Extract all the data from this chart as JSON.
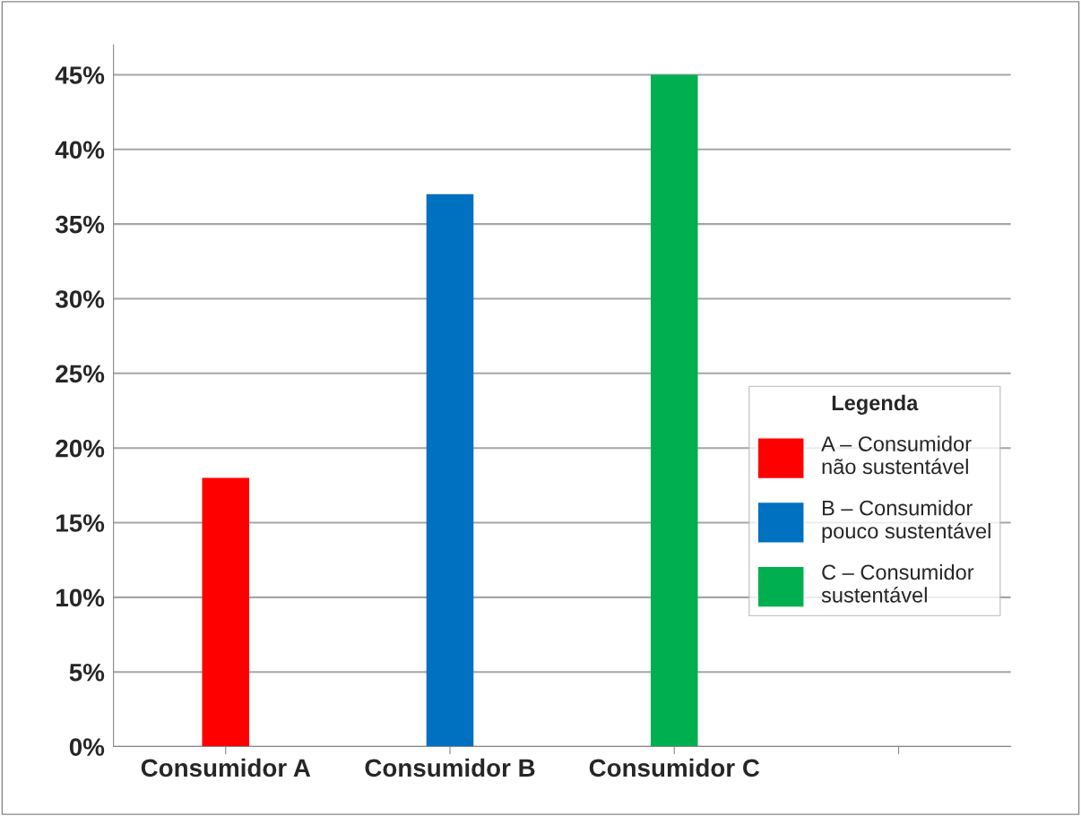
{
  "chart_data": {
    "type": "bar",
    "categories": [
      "Consumidor A",
      "Consumidor B",
      "Consumidor C",
      null
    ],
    "series": [
      {
        "name": "A – Consumidor\nnão sustentável",
        "color": "#ff0000",
        "values": [
          18,
          null,
          null,
          null
        ]
      },
      {
        "name": "B – Consumidor\npouco sustentável",
        "color": "#0070c0",
        "values": [
          null,
          37,
          null,
          null
        ]
      },
      {
        "name": "C – Consumidor\nsustentável",
        "color": "#00b050",
        "values": [
          null,
          null,
          45,
          null
        ]
      }
    ],
    "ylim": [
      0,
      47
    ],
    "yticks": [
      {
        "value": 0,
        "label": "0%"
      },
      {
        "value": 5,
        "label": "5%"
      },
      {
        "value": 10,
        "label": "10%"
      },
      {
        "value": 15,
        "label": "15%"
      },
      {
        "value": 20,
        "label": "20%"
      },
      {
        "value": 25,
        "label": "25%"
      },
      {
        "value": 30,
        "label": "30%"
      },
      {
        "value": 35,
        "label": "35%"
      },
      {
        "value": 40,
        "label": "40%"
      },
      {
        "value": 45,
        "label": "45%"
      }
    ],
    "grid": "y",
    "legend": "right",
    "legend_title": "Legenda"
  }
}
